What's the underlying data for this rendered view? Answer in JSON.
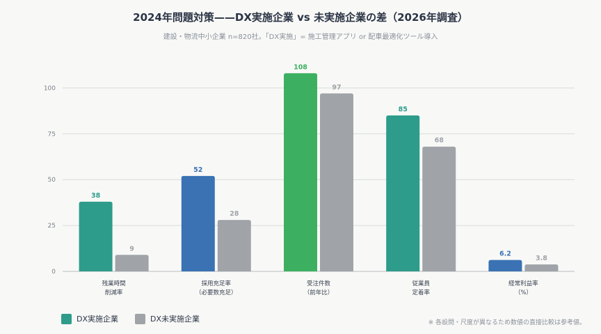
{
  "title": "2024年問題対策——DX実施企業 vs 未実施企業の差（2026年調査）",
  "subtitle": "建設・物流中小企業 n=820社。「DX実施」= 施工管理アプリ or 配車最適化ツール導入",
  "note": "※ 各設問・尺度が異なるため数値の直接比較は参考値。",
  "colors": {
    "teal": "#2e9c8a",
    "blue": "#3a72b4",
    "green": "#3cb060",
    "gray": "#a0a4a8",
    "grid": "#d8dbd9",
    "tick_text": "#7a8088"
  },
  "chart_data": {
    "type": "bar",
    "categories": [
      [
        "残業時間",
        "削減率"
      ],
      [
        "採用充足率",
        "（必要数充足）"
      ],
      [
        "受注件数",
        "（前年比）"
      ],
      [
        "従業員",
        "定着率"
      ],
      [
        "経常利益率",
        "（%）"
      ]
    ],
    "series": [
      {
        "name": "DX実施企業",
        "values": [
          38,
          52,
          108,
          85,
          6.2
        ],
        "value_labels": [
          "38",
          "52",
          "108",
          "85",
          "6.2"
        ],
        "bar_colors": [
          "#2e9c8a",
          "#3a72b4",
          "#3cb060",
          "#2e9c8a",
          "#3a72b4"
        ],
        "legend_color": "#2e9c8a"
      },
      {
        "name": "DX未実施企業",
        "values": [
          9,
          28,
          97,
          68,
          3.8
        ],
        "value_labels": [
          "9",
          "28",
          "97",
          "68",
          "3.8"
        ],
        "bar_colors": [
          "#a0a4a8",
          "#a0a4a8",
          "#a0a4a8",
          "#a0a4a8",
          "#a0a4a8"
        ],
        "legend_color": "#a0a4a8"
      }
    ],
    "yticks": [
      0,
      25,
      50,
      75,
      100
    ],
    "ylim": [
      0,
      110
    ],
    "grid": true,
    "legend_position": "bottom-left"
  }
}
